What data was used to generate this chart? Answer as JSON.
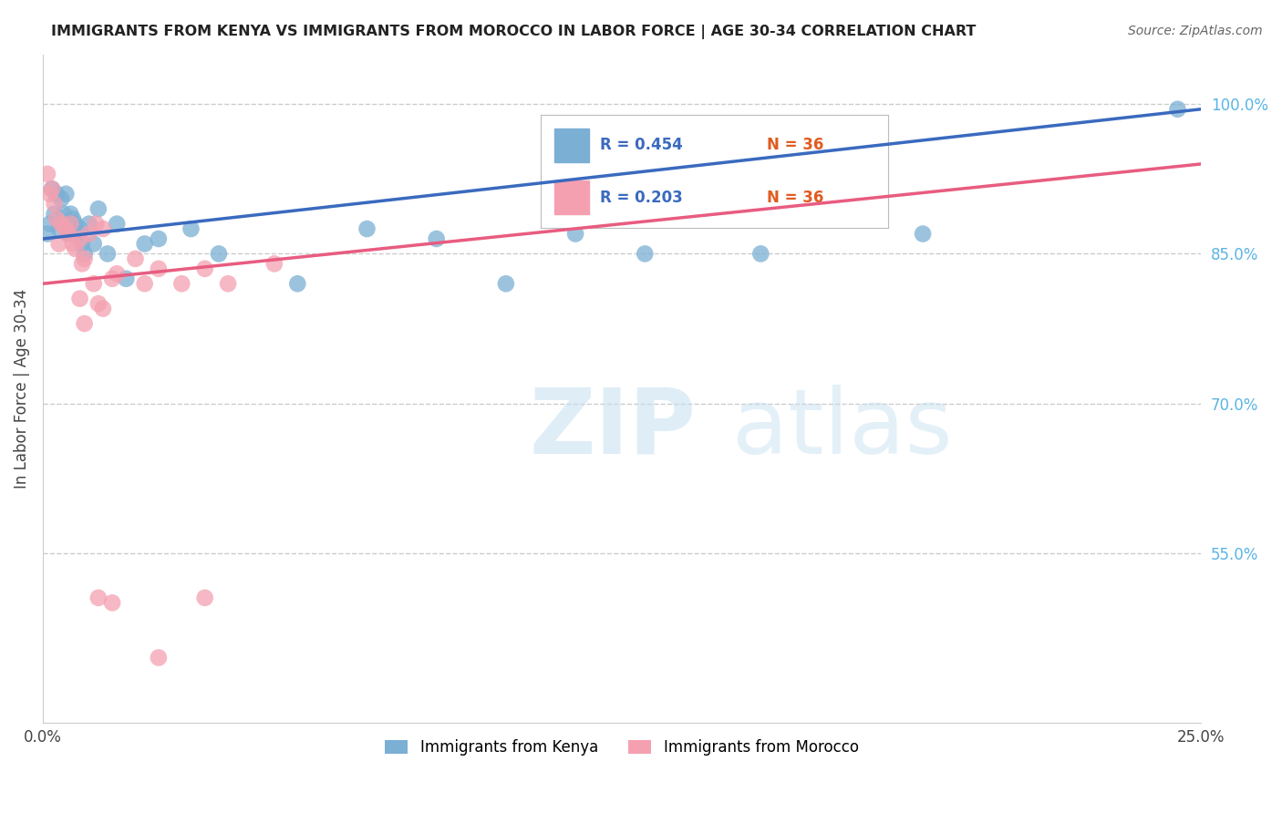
{
  "title": "IMMIGRANTS FROM KENYA VS IMMIGRANTS FROM MOROCCO IN LABOR FORCE | AGE 30-34 CORRELATION CHART",
  "source": "Source: ZipAtlas.com",
  "ylabel": "In Labor Force | Age 30-34",
  "y_ticks": [
    55.0,
    70.0,
    85.0,
    100.0
  ],
  "xlim": [
    0.0,
    25.0
  ],
  "ylim": [
    38.0,
    105.0
  ],
  "kenya_R": 0.454,
  "kenya_N": 36,
  "morocco_R": 0.203,
  "morocco_N": 36,
  "kenya_color": "#7bafd4",
  "morocco_color": "#f4a0b0",
  "kenya_line_color": "#3a6abf",
  "morocco_line_color": "#e85c80",
  "watermark_zip": "ZIP",
  "watermark_atlas": "atlas",
  "kenya_x": [
    0.1,
    0.15,
    0.2,
    0.25,
    0.3,
    0.35,
    0.4,
    0.45,
    0.5,
    0.55,
    0.6,
    0.65,
    0.7,
    0.75,
    0.8,
    0.85,
    0.9,
    1.0,
    1.1,
    1.2,
    1.4,
    1.6,
    1.8,
    2.2,
    2.5,
    3.2,
    3.8,
    5.5,
    7.0,
    8.5,
    10.0,
    11.5,
    13.0,
    15.5,
    19.0,
    24.5
  ],
  "kenya_y": [
    87.0,
    88.0,
    91.5,
    89.0,
    91.0,
    87.5,
    90.5,
    89.0,
    91.0,
    87.0,
    89.0,
    88.5,
    88.0,
    87.0,
    87.5,
    86.0,
    85.0,
    88.0,
    86.0,
    89.5,
    85.0,
    88.0,
    82.5,
    86.0,
    86.5,
    87.5,
    85.0,
    82.0,
    87.5,
    86.5,
    82.0,
    87.0,
    85.0,
    85.0,
    87.0,
    99.5
  ],
  "morocco_x": [
    0.1,
    0.15,
    0.2,
    0.25,
    0.3,
    0.35,
    0.4,
    0.5,
    0.55,
    0.6,
    0.65,
    0.7,
    0.8,
    0.85,
    0.9,
    1.0,
    1.1,
    1.15,
    1.2,
    1.3,
    1.5,
    1.6,
    2.0,
    2.2,
    2.5,
    3.0,
    3.5,
    4.0,
    5.0,
    1.2,
    1.5,
    3.5,
    0.8,
    0.9,
    1.3,
    2.5
  ],
  "morocco_y": [
    93.0,
    91.0,
    91.5,
    90.0,
    88.5,
    86.0,
    88.0,
    87.5,
    87.0,
    88.0,
    86.0,
    85.5,
    86.5,
    84.0,
    84.5,
    87.0,
    82.0,
    88.0,
    80.0,
    87.5,
    82.5,
    83.0,
    84.5,
    82.0,
    83.5,
    82.0,
    83.5,
    82.0,
    84.0,
    50.5,
    50.0,
    50.5,
    80.5,
    78.0,
    79.5,
    44.5
  ]
}
